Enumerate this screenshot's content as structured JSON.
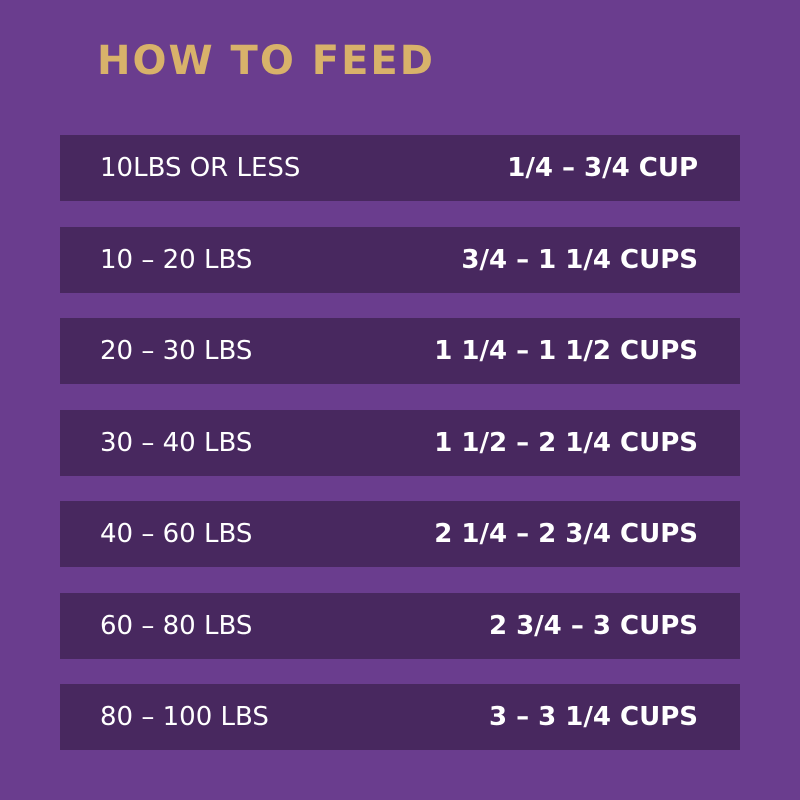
{
  "header": {
    "title": "HOW TO FEED"
  },
  "table": {
    "rows": [
      [
        "10LBS OR LESS",
        "1/4 – 3/4 CUP"
      ],
      [
        "10 – 20 LBS",
        "3/4 – 1 1/4 CUPS"
      ],
      [
        "20 – 30 LBS",
        "1 1/4 – 1 1/2 CUPS"
      ],
      [
        "30 – 40 LBS",
        "1 1/2 – 2 1/4 CUPS"
      ],
      [
        "40 – 60 LBS",
        "2 1/4 – 2 3/4 CUPS"
      ],
      [
        "60 – 80 LBS",
        "2 3/4 – 3 CUPS"
      ],
      [
        "80 – 100 LBS",
        "3 – 3 1/4 CUPS"
      ]
    ]
  }
}
